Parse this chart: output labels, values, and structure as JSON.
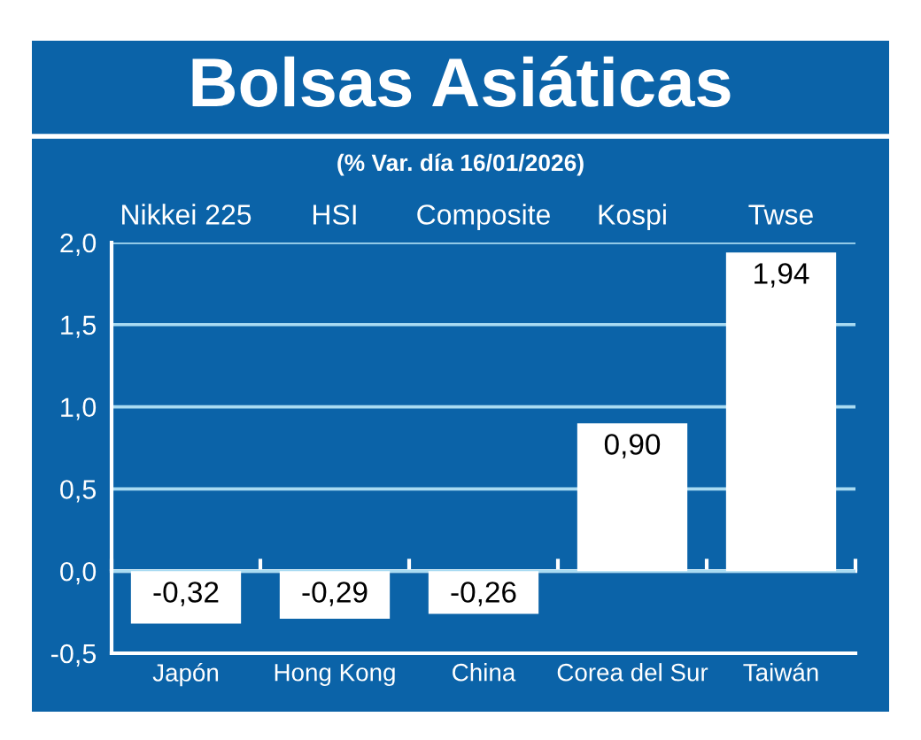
{
  "chart_data": {
    "type": "bar",
    "title": "Bolsas Asiáticas",
    "subtitle": "(% Var. día 16/01/2026)",
    "categories": [
      "Japón",
      "Hong Kong",
      "China",
      "Corea del Sur",
      "Taiwán"
    ],
    "values": [
      -0.32,
      -0.29,
      -0.26,
      0.9,
      1.94
    ],
    "value_labels": [
      "-0,32",
      "-0,29",
      "-0,26",
      "0,90",
      "1,94"
    ],
    "color": "#ffffff",
    "ylim": [
      -0.5,
      2.0
    ],
    "yticks": [
      {
        "value": -0.5,
        "label": "-0,5"
      },
      {
        "value": 0.0,
        "label": "0,0"
      },
      {
        "value": 0.5,
        "label": "0,5"
      },
      {
        "value": 1.0,
        "label": "1,0"
      },
      {
        "value": 1.5,
        "label": "1,5"
      },
      {
        "value": 2.0,
        "label": "2,0"
      }
    ],
    "grid": "y",
    "annotations": [
      "Nikkei 225",
      "HSI",
      "Composite",
      "Kospi",
      "Twse"
    ]
  }
}
